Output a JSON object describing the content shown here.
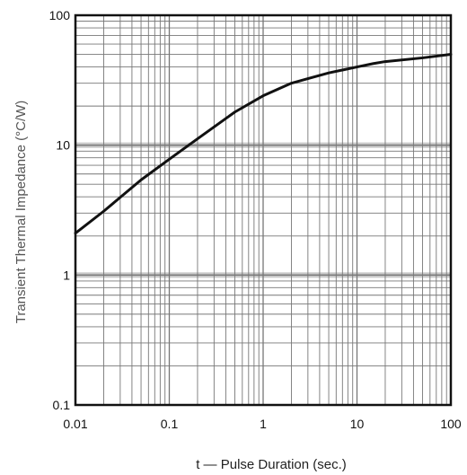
{
  "chart_data": {
    "type": "line",
    "title": "",
    "xlabel": "t — Pulse Duration (sec.)",
    "ylabel": "Transient Thermal Impedance (°C/W)",
    "x_scale": "log",
    "y_scale": "log",
    "xlim": [
      0.01,
      100
    ],
    "ylim": [
      0.1,
      100
    ],
    "x_ticks": [
      "0.01",
      "0.1",
      "1",
      "10",
      "100"
    ],
    "y_ticks": [
      "0.1",
      "1",
      "10",
      "100"
    ],
    "grid": true,
    "legend": "none",
    "colors": {
      "line": "#111111",
      "grid": "#777777",
      "emphasis_grid": "#c8c8c8",
      "frame": "#111111"
    },
    "series": [
      {
        "x": [
          0.01,
          0.02,
          0.05,
          0.1,
          0.2,
          0.5,
          1,
          2,
          3,
          5,
          10,
          15,
          20,
          50,
          100
        ],
        "values": [
          2.1,
          3.1,
          5.4,
          7.8,
          11.2,
          18.0,
          24.0,
          30.0,
          32.5,
          36.0,
          40.0,
          42.5,
          44.0,
          47.0,
          50.0
        ]
      }
    ]
  }
}
